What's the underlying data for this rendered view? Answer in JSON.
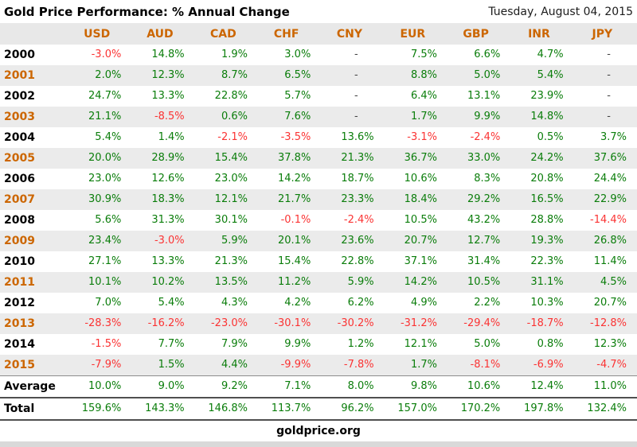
{
  "header": {
    "title": "Gold Price Performance: % Annual Change",
    "date": "Tuesday, August 04, 2015"
  },
  "footer": {
    "site": "goldprice.org"
  },
  "colors": {
    "positive": "#0a7d0a",
    "negative": "#fb3333",
    "accent_orange": "#cc6600",
    "row_stripe": "#ebebeb",
    "header_band": "#e8e8e8"
  },
  "table": {
    "currency_columns": [
      "USD",
      "AUD",
      "CAD",
      "CHF",
      "CNY",
      "EUR",
      "GBP",
      "INR",
      "JPY"
    ],
    "rows": [
      {
        "label": "2000",
        "kind": "year",
        "accent": false,
        "shaded": false,
        "values": [
          "-3.0%",
          "14.8%",
          "1.9%",
          "3.0%",
          "-",
          "7.5%",
          "6.6%",
          "4.7%",
          "-"
        ]
      },
      {
        "label": "2001",
        "kind": "year",
        "accent": true,
        "shaded": true,
        "values": [
          "2.0%",
          "12.3%",
          "8.7%",
          "6.5%",
          "-",
          "8.8%",
          "5.0%",
          "5.4%",
          "-"
        ]
      },
      {
        "label": "2002",
        "kind": "year",
        "accent": false,
        "shaded": false,
        "values": [
          "24.7%",
          "13.3%",
          "22.8%",
          "5.7%",
          "-",
          "6.4%",
          "13.1%",
          "23.9%",
          "-"
        ]
      },
      {
        "label": "2003",
        "kind": "year",
        "accent": true,
        "shaded": true,
        "values": [
          "21.1%",
          "-8.5%",
          "0.6%",
          "7.6%",
          "-",
          "1.7%",
          "9.9%",
          "14.8%",
          "-"
        ]
      },
      {
        "label": "2004",
        "kind": "year",
        "accent": false,
        "shaded": false,
        "values": [
          "5.4%",
          "1.4%",
          "-2.1%",
          "-3.5%",
          "13.6%",
          "-3.1%",
          "-2.4%",
          "0.5%",
          "3.7%"
        ]
      },
      {
        "label": "2005",
        "kind": "year",
        "accent": true,
        "shaded": true,
        "values": [
          "20.0%",
          "28.9%",
          "15.4%",
          "37.8%",
          "21.3%",
          "36.7%",
          "33.0%",
          "24.2%",
          "37.6%"
        ]
      },
      {
        "label": "2006",
        "kind": "year",
        "accent": false,
        "shaded": false,
        "values": [
          "23.0%",
          "12.6%",
          "23.0%",
          "14.2%",
          "18.7%",
          "10.6%",
          "8.3%",
          "20.8%",
          "24.4%"
        ]
      },
      {
        "label": "2007",
        "kind": "year",
        "accent": true,
        "shaded": true,
        "values": [
          "30.9%",
          "18.3%",
          "12.1%",
          "21.7%",
          "23.3%",
          "18.4%",
          "29.2%",
          "16.5%",
          "22.9%"
        ]
      },
      {
        "label": "2008",
        "kind": "year",
        "accent": false,
        "shaded": false,
        "values": [
          "5.6%",
          "31.3%",
          "30.1%",
          "-0.1%",
          "-2.4%",
          "10.5%",
          "43.2%",
          "28.8%",
          "-14.4%"
        ]
      },
      {
        "label": "2009",
        "kind": "year",
        "accent": true,
        "shaded": true,
        "values": [
          "23.4%",
          "-3.0%",
          "5.9%",
          "20.1%",
          "23.6%",
          "20.7%",
          "12.7%",
          "19.3%",
          "26.8%"
        ]
      },
      {
        "label": "2010",
        "kind": "year",
        "accent": false,
        "shaded": false,
        "values": [
          "27.1%",
          "13.3%",
          "21.3%",
          "15.4%",
          "22.8%",
          "37.1%",
          "31.4%",
          "22.3%",
          "11.4%"
        ]
      },
      {
        "label": "2011",
        "kind": "year",
        "accent": true,
        "shaded": true,
        "values": [
          "10.1%",
          "10.2%",
          "13.5%",
          "11.2%",
          "5.9%",
          "14.2%",
          "10.5%",
          "31.1%",
          "4.5%"
        ]
      },
      {
        "label": "2012",
        "kind": "year",
        "accent": false,
        "shaded": false,
        "values": [
          "7.0%",
          "5.4%",
          "4.3%",
          "4.2%",
          "6.2%",
          "4.9%",
          "2.2%",
          "10.3%",
          "20.7%"
        ]
      },
      {
        "label": "2013",
        "kind": "year",
        "accent": true,
        "shaded": true,
        "values": [
          "-28.3%",
          "-16.2%",
          "-23.0%",
          "-30.1%",
          "-30.2%",
          "-31.2%",
          "-29.4%",
          "-18.7%",
          "-12.8%"
        ]
      },
      {
        "label": "2014",
        "kind": "year",
        "accent": false,
        "shaded": false,
        "values": [
          "-1.5%",
          "7.7%",
          "7.9%",
          "9.9%",
          "1.2%",
          "12.1%",
          "5.0%",
          "0.8%",
          "12.3%"
        ]
      },
      {
        "label": "2015",
        "kind": "year",
        "accent": true,
        "shaded": true,
        "values": [
          "-7.9%",
          "1.5%",
          "4.4%",
          "-9.9%",
          "-7.8%",
          "1.7%",
          "-8.1%",
          "-6.9%",
          "-4.7%"
        ]
      },
      {
        "label": "Average",
        "kind": "average",
        "accent": false,
        "shaded": false,
        "values": [
          "10.0%",
          "9.0%",
          "9.2%",
          "7.1%",
          "8.0%",
          "9.8%",
          "10.6%",
          "12.4%",
          "11.0%"
        ]
      },
      {
        "label": "Total",
        "kind": "total",
        "accent": false,
        "shaded": false,
        "values": [
          "159.6%",
          "143.3%",
          "146.8%",
          "113.7%",
          "96.2%",
          "157.0%",
          "170.2%",
          "197.8%",
          "132.4%"
        ]
      }
    ]
  },
  "chart_data": {
    "type": "table",
    "title": "Gold Price Performance: % Annual Change",
    "date_shown": "Tuesday, August 04, 2015",
    "unit": "percent annual change",
    "categories": [
      "2000",
      "2001",
      "2002",
      "2003",
      "2004",
      "2005",
      "2006",
      "2007",
      "2008",
      "2009",
      "2010",
      "2011",
      "2012",
      "2013",
      "2014",
      "2015",
      "Average",
      "Total"
    ],
    "series": [
      {
        "name": "USD",
        "values": [
          -3.0,
          2.0,
          24.7,
          21.1,
          5.4,
          20.0,
          23.0,
          30.9,
          5.6,
          23.4,
          27.1,
          10.1,
          7.0,
          -28.3,
          -1.5,
          -7.9,
          10.0,
          159.6
        ]
      },
      {
        "name": "AUD",
        "values": [
          14.8,
          12.3,
          13.3,
          -8.5,
          1.4,
          28.9,
          12.6,
          18.3,
          31.3,
          -3.0,
          13.3,
          10.2,
          5.4,
          -16.2,
          7.7,
          1.5,
          9.0,
          143.3
        ]
      },
      {
        "name": "CAD",
        "values": [
          1.9,
          8.7,
          22.8,
          0.6,
          -2.1,
          15.4,
          23.0,
          12.1,
          30.1,
          5.9,
          21.3,
          13.5,
          4.3,
          -23.0,
          7.9,
          4.4,
          9.2,
          146.8
        ]
      },
      {
        "name": "CHF",
        "values": [
          3.0,
          6.5,
          5.7,
          7.6,
          -3.5,
          37.8,
          14.2,
          21.7,
          -0.1,
          20.1,
          15.4,
          11.2,
          4.2,
          -30.1,
          9.9,
          -9.9,
          7.1,
          113.7
        ]
      },
      {
        "name": "CNY",
        "values": [
          null,
          null,
          null,
          null,
          13.6,
          21.3,
          18.7,
          23.3,
          -2.4,
          23.6,
          22.8,
          5.9,
          6.2,
          -30.2,
          1.2,
          -7.8,
          8.0,
          96.2
        ]
      },
      {
        "name": "EUR",
        "values": [
          7.5,
          8.8,
          6.4,
          1.7,
          -3.1,
          36.7,
          10.6,
          18.4,
          10.5,
          20.7,
          37.1,
          14.2,
          4.9,
          -31.2,
          12.1,
          1.7,
          9.8,
          157.0
        ]
      },
      {
        "name": "GBP",
        "values": [
          6.6,
          5.0,
          13.1,
          9.9,
          -2.4,
          33.0,
          8.3,
          29.2,
          43.2,
          12.7,
          31.4,
          10.5,
          2.2,
          -29.4,
          5.0,
          -8.1,
          10.6,
          170.2
        ]
      },
      {
        "name": "INR",
        "values": [
          4.7,
          5.4,
          23.9,
          14.8,
          0.5,
          24.2,
          20.8,
          16.5,
          28.8,
          19.3,
          22.3,
          31.1,
          10.3,
          -18.7,
          0.8,
          -6.9,
          12.4,
          197.8
        ]
      },
      {
        "name": "JPY",
        "values": [
          null,
          null,
          null,
          null,
          3.7,
          37.6,
          24.4,
          22.9,
          -14.4,
          26.8,
          11.4,
          4.5,
          20.7,
          -12.8,
          12.3,
          -4.7,
          11.0,
          132.4
        ]
      }
    ],
    "legend_position": "none",
    "notes": "Dash (-) rendered for missing CNY and JPY values 2000-2003; positive values green, negative values red; odd-year rows shaded grey with orange year labels."
  }
}
